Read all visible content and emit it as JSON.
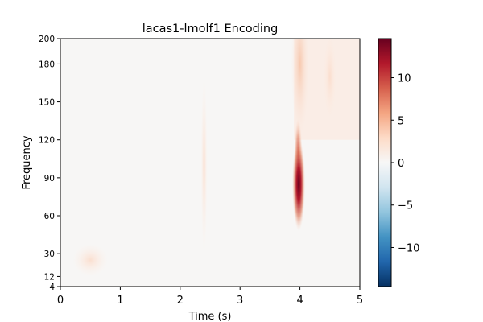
{
  "chart_data": {
    "type": "heatmap",
    "title": "lacas1-lmolf1 Encoding",
    "xlabel": "Time (s)",
    "ylabel": "Frequency",
    "xlim": [
      0,
      5
    ],
    "ylim": [
      4,
      200
    ],
    "x_ticks": [
      0,
      1,
      2,
      3,
      4,
      5
    ],
    "x_tick_labels": [
      "0",
      "1",
      "2",
      "3",
      "4",
      "5"
    ],
    "y_ticks": [
      4,
      12,
      30,
      60,
      90,
      120,
      150,
      180,
      200
    ],
    "y_tick_labels": [
      "4",
      "12",
      "30",
      "60",
      "90",
      "120",
      "150",
      "180",
      "200"
    ],
    "colorbar": {
      "range": [
        -14.6,
        14.6
      ],
      "ticks": [
        -10,
        -5,
        0,
        5,
        10
      ],
      "tick_labels": [
        "−10",
        "−5",
        "0",
        "5",
        "10"
      ],
      "colormap": "RdBu_r",
      "colors": [
        "#053061",
        "#2166ac",
        "#4393c3",
        "#92c5de",
        "#d1e5f0",
        "#f7f7f7",
        "#fddbc7",
        "#f4a582",
        "#d6604d",
        "#b2182b",
        "#67001f"
      ]
    },
    "features": [
      {
        "time": 3.98,
        "freq": 85,
        "value": 14.5,
        "description": "strong positive band"
      },
      {
        "time": 3.97,
        "freq": 110,
        "value": 7
      },
      {
        "time": 4.0,
        "freq": 180,
        "value": 2
      },
      {
        "time": 4.5,
        "freq": 170,
        "value": 2
      },
      {
        "time": 0.5,
        "freq": 25,
        "value": 1.5
      },
      {
        "time": 2.4,
        "freq": 100,
        "value": 1
      }
    ]
  }
}
